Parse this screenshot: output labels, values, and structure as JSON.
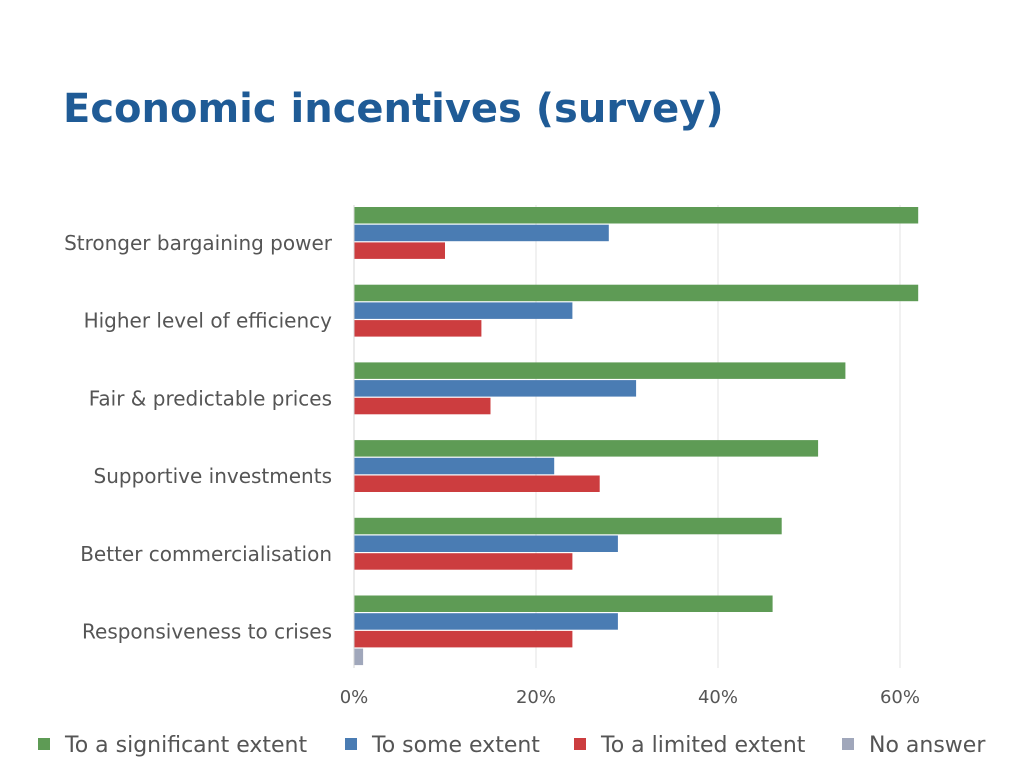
{
  "title": "Economic incentives (survey)",
  "chart_data": {
    "type": "bar",
    "orientation": "horizontal",
    "categories": [
      "Stronger bargaining power",
      "Higher level of efficiency",
      "Fair & predictable prices",
      "Supportive investments",
      "Better commercialisation",
      "Responsiveness to crises"
    ],
    "series": [
      {
        "name": "To a significant extent",
        "color": "#5e9b55",
        "values": [
          62,
          62,
          54,
          51,
          47,
          46
        ]
      },
      {
        "name": "To some extent",
        "color": "#4a7cb3",
        "values": [
          28,
          24,
          31,
          22,
          29,
          29
        ]
      },
      {
        "name": "To a limited extent",
        "color": "#cc3d3f",
        "values": [
          10,
          14,
          15,
          27,
          24,
          24
        ]
      },
      {
        "name": "No answer",
        "color": "#a0a7bb",
        "values": [
          0,
          0,
          0,
          0,
          0,
          1
        ]
      }
    ],
    "xlim": [
      0,
      70
    ],
    "xticks": [
      "0%",
      "20%",
      "40%",
      "60%"
    ],
    "xtick_values": [
      0,
      20,
      40,
      60
    ],
    "grid": true,
    "legend": "bottom"
  }
}
